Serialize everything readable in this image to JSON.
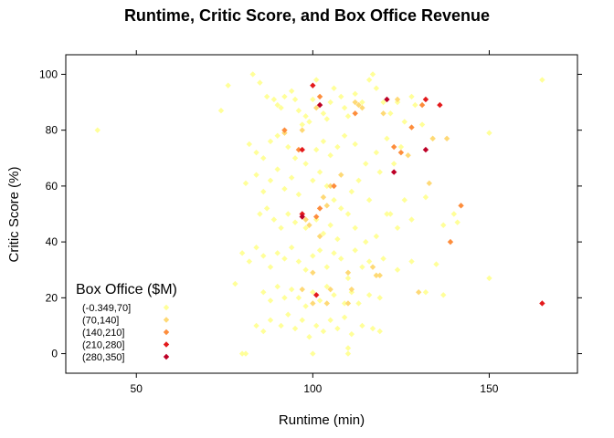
{
  "chart_data": {
    "type": "scatter",
    "title": "Runtime, Critic Score, and Box Office Revenue",
    "xlabel": "Runtime (min)",
    "ylabel": "Critic Score (%)",
    "xlim": [
      30,
      175
    ],
    "ylim": [
      -7,
      107
    ],
    "xticks": [
      50,
      100,
      150
    ],
    "yticks": [
      0,
      20,
      40,
      60,
      80,
      100
    ],
    "grid": false,
    "legend": {
      "title": "Box Office ($M)",
      "placement": "bottom-left inside",
      "entries": [
        "(-0.349,70]",
        "(70,140]",
        "(140,210]",
        "(210,280]",
        "(280,350]"
      ],
      "colors": [
        "#ffff99",
        "#fed976",
        "#fd8d3c",
        "#e31a1c",
        "#bd0026"
      ]
    },
    "series": [
      {
        "name": "(-0.349,70]",
        "color": "#ffff99",
        "points": [
          [
            39,
            80
          ],
          [
            74,
            87
          ],
          [
            76,
            96
          ],
          [
            83,
            100
          ],
          [
            85,
            97
          ],
          [
            87,
            92
          ],
          [
            89,
            91
          ],
          [
            90,
            89
          ],
          [
            91,
            88
          ],
          [
            92,
            92
          ],
          [
            94,
            94
          ],
          [
            95,
            91
          ],
          [
            96,
            87
          ],
          [
            97,
            82
          ],
          [
            98,
            85
          ],
          [
            99,
            83
          ],
          [
            100,
            91
          ],
          [
            101,
            98
          ],
          [
            102,
            89
          ],
          [
            103,
            86
          ],
          [
            104,
            84
          ],
          [
            105,
            90
          ],
          [
            106,
            95
          ],
          [
            108,
            92
          ],
          [
            109,
            88
          ],
          [
            110,
            85
          ],
          [
            112,
            93
          ],
          [
            114,
            90
          ],
          [
            116,
            98
          ],
          [
            117,
            100
          ],
          [
            118,
            95
          ],
          [
            120,
            90
          ],
          [
            122,
            86
          ],
          [
            124,
            90
          ],
          [
            126,
            83
          ],
          [
            128,
            92
          ],
          [
            129,
            89
          ],
          [
            131,
            82
          ],
          [
            134,
            77
          ],
          [
            82,
            75
          ],
          [
            84,
            72
          ],
          [
            86,
            70
          ],
          [
            88,
            76
          ],
          [
            90,
            78
          ],
          [
            93,
            74
          ],
          [
            95,
            70
          ],
          [
            98,
            68
          ],
          [
            101,
            73
          ],
          [
            103,
            76
          ],
          [
            105,
            71
          ],
          [
            107,
            74
          ],
          [
            109,
            78
          ],
          [
            112,
            75
          ],
          [
            115,
            68
          ],
          [
            118,
            72
          ],
          [
            121,
            77
          ],
          [
            123,
            68
          ],
          [
            125,
            74
          ],
          [
            150,
            79
          ],
          [
            165,
            98
          ],
          [
            81,
            61
          ],
          [
            84,
            64
          ],
          [
            86,
            58
          ],
          [
            88,
            62
          ],
          [
            90,
            66
          ],
          [
            92,
            59
          ],
          [
            94,
            63
          ],
          [
            96,
            57
          ],
          [
            100,
            62
          ],
          [
            102,
            65
          ],
          [
            104,
            60
          ],
          [
            106,
            55
          ],
          [
            108,
            52
          ],
          [
            111,
            58
          ],
          [
            113,
            62
          ],
          [
            116,
            55
          ],
          [
            119,
            65
          ],
          [
            122,
            50
          ],
          [
            126,
            55
          ],
          [
            132,
            56
          ],
          [
            140,
            50
          ],
          [
            85,
            50
          ],
          [
            87,
            52
          ],
          [
            89,
            48
          ],
          [
            91,
            45
          ],
          [
            93,
            50
          ],
          [
            95,
            47
          ],
          [
            98,
            45
          ],
          [
            101,
            48
          ],
          [
            103,
            43
          ],
          [
            105,
            46
          ],
          [
            107,
            41
          ],
          [
            110,
            50
          ],
          [
            112,
            45
          ],
          [
            115,
            40
          ],
          [
            118,
            42
          ],
          [
            121,
            50
          ],
          [
            124,
            45
          ],
          [
            128,
            48
          ],
          [
            137,
            46
          ],
          [
            141,
            47
          ],
          [
            80,
            36
          ],
          [
            82,
            33
          ],
          [
            84,
            38
          ],
          [
            86,
            35
          ],
          [
            88,
            31
          ],
          [
            90,
            36
          ],
          [
            92,
            34
          ],
          [
            94,
            38
          ],
          [
            96,
            33
          ],
          [
            98,
            30
          ],
          [
            100,
            35
          ],
          [
            102,
            37
          ],
          [
            104,
            31
          ],
          [
            106,
            36
          ],
          [
            108,
            34
          ],
          [
            110,
            27
          ],
          [
            112,
            37
          ],
          [
            114,
            31
          ],
          [
            116,
            33
          ],
          [
            118,
            28
          ],
          [
            120,
            34
          ],
          [
            124,
            30
          ],
          [
            128,
            33
          ],
          [
            135,
            32
          ],
          [
            150,
            27
          ],
          [
            78,
            25
          ],
          [
            86,
            22
          ],
          [
            88,
            19
          ],
          [
            90,
            24
          ],
          [
            92,
            20
          ],
          [
            94,
            23
          ],
          [
            96,
            20
          ],
          [
            98,
            17
          ],
          [
            100,
            22
          ],
          [
            102,
            19
          ],
          [
            104,
            24
          ],
          [
            106,
            21
          ],
          [
            109,
            18
          ],
          [
            111,
            22
          ],
          [
            113,
            18
          ],
          [
            116,
            21
          ],
          [
            119,
            20
          ],
          [
            132,
            22
          ],
          [
            137,
            21
          ],
          [
            84,
            10
          ],
          [
            86,
            8
          ],
          [
            88,
            12
          ],
          [
            91,
            10
          ],
          [
            93,
            14
          ],
          [
            95,
            9
          ],
          [
            97,
            12
          ],
          [
            99,
            6
          ],
          [
            101,
            10
          ],
          [
            103,
            8
          ],
          [
            105,
            12
          ],
          [
            107,
            9
          ],
          [
            109,
            13
          ],
          [
            111,
            7
          ],
          [
            114,
            10
          ],
          [
            117,
            9
          ],
          [
            119,
            8
          ],
          [
            80,
            0
          ],
          [
            81,
            0
          ],
          [
            100,
            0
          ],
          [
            110,
            0
          ],
          [
            110,
            2
          ]
        ]
      },
      {
        "name": "(70,140]",
        "color": "#fed976",
        "points": [
          [
            92,
            79
          ],
          [
            97,
            80
          ],
          [
            101,
            88
          ],
          [
            105,
            60
          ],
          [
            108,
            64
          ],
          [
            112,
            90
          ],
          [
            113,
            89
          ],
          [
            114,
            88
          ],
          [
            120,
            86
          ],
          [
            124,
            91
          ],
          [
            127,
            71
          ],
          [
            133,
            61
          ],
          [
            134,
            77
          ],
          [
            138,
            77
          ],
          [
            103,
            56
          ],
          [
            104,
            53
          ],
          [
            102,
            42
          ],
          [
            98,
            48
          ],
          [
            99,
            46
          ],
          [
            100,
            29
          ],
          [
            105,
            23
          ],
          [
            110,
            29
          ],
          [
            111,
            23
          ],
          [
            117,
            31
          ],
          [
            118,
            28
          ],
          [
            119,
            28
          ],
          [
            97,
            23
          ],
          [
            100,
            18
          ],
          [
            104,
            18
          ],
          [
            110,
            18
          ],
          [
            130,
            22
          ]
        ]
      },
      {
        "name": "(140,210]",
        "color": "#fd8d3c",
        "points": [
          [
            92,
            80
          ],
          [
            102,
            92
          ],
          [
            112,
            86
          ],
          [
            123,
            74
          ],
          [
            125,
            72
          ],
          [
            128,
            81
          ],
          [
            131,
            89
          ],
          [
            142,
            53
          ],
          [
            139,
            40
          ],
          [
            106,
            60
          ],
          [
            102,
            52
          ],
          [
            101,
            49
          ],
          [
            96,
            73
          ]
        ]
      },
      {
        "name": "(210,280]",
        "color": "#e31a1c",
        "points": [
          [
            100,
            96
          ],
          [
            132,
            91
          ],
          [
            136,
            89
          ],
          [
            97,
            73
          ],
          [
            97,
            50
          ],
          [
            101,
            21
          ],
          [
            165,
            18
          ]
        ]
      },
      {
        "name": "(280,350]",
        "color": "#bd0026",
        "points": [
          [
            102,
            89
          ],
          [
            121,
            91
          ],
          [
            123,
            65
          ],
          [
            132,
            73
          ],
          [
            97,
            49
          ]
        ]
      }
    ]
  }
}
